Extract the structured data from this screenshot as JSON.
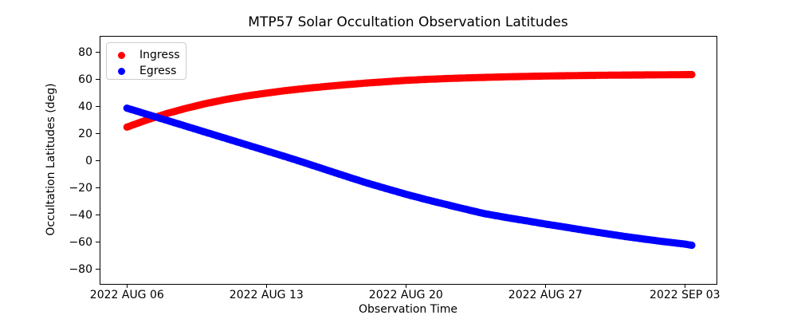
{
  "chart_data": {
    "type": "scatter",
    "title": "MTP57 Solar Occultation Observation Latitudes",
    "xlabel": "Observation Time",
    "ylabel": "Occultation Latitudes (deg)",
    "grid": false,
    "legend_position": "upper left",
    "marker": "circle",
    "marker_radius_px": 4.6,
    "point_step_days": 0.09,
    "x_units": "days relative to 2022 AUG 06",
    "xlim_days": [
      -1.37,
      29.59
    ],
    "ylim": [
      -91.2,
      91.8
    ],
    "xticks": [
      {
        "label": "2022 AUG 06",
        "day": 0
      },
      {
        "label": "2022 AUG 13",
        "day": 7
      },
      {
        "label": "2022 AUG 20",
        "day": 14
      },
      {
        "label": "2022 AUG 27",
        "day": 21
      },
      {
        "label": "2022 SEP 03",
        "day": 28
      }
    ],
    "yticks": [
      {
        "value": 80,
        "label": "80"
      },
      {
        "value": 60,
        "label": "60"
      },
      {
        "value": 40,
        "label": "40"
      },
      {
        "value": 20,
        "label": "20"
      },
      {
        "value": 0,
        "label": "0"
      },
      {
        "value": -20,
        "label": "−20"
      },
      {
        "value": -40,
        "label": "−40"
      },
      {
        "value": -60,
        "label": "−60"
      },
      {
        "value": -80,
        "label": "−80"
      }
    ],
    "series": [
      {
        "name": "Ingress",
        "color": "#ff0000",
        "x": [
          0,
          1,
          2,
          3,
          4,
          5,
          6,
          7,
          8,
          9,
          10,
          11,
          12,
          13,
          14,
          15,
          16,
          17,
          18,
          19,
          20,
          21,
          22,
          23,
          24,
          25,
          26,
          27,
          28,
          28.4
        ],
        "y": [
          24.5,
          29.8,
          34.5,
          38.5,
          42.0,
          45.0,
          47.5,
          49.6,
          51.5,
          53.1,
          54.5,
          55.8,
          57.0,
          58.0,
          59.0,
          59.7,
          60.3,
          60.8,
          61.2,
          61.6,
          61.9,
          62.2,
          62.4,
          62.6,
          62.8,
          62.9,
          63.0,
          63.1,
          63.2,
          63.3
        ]
      },
      {
        "name": "Egress",
        "color": "#0000ff",
        "x": [
          0,
          1,
          2,
          3,
          4,
          5,
          6,
          7,
          8,
          9,
          10,
          11,
          12,
          13,
          14,
          15,
          16,
          17,
          18,
          19,
          20,
          21,
          22,
          23,
          24,
          25,
          26,
          27,
          28,
          28.4
        ],
        "y": [
          38.5,
          34.0,
          29.5,
          25.0,
          20.5,
          16.0,
          11.5,
          7.0,
          2.5,
          -2.2,
          -7.0,
          -11.8,
          -16.5,
          -20.8,
          -25.0,
          -28.9,
          -32.5,
          -36.1,
          -39.5,
          -42.1,
          -44.5,
          -47.0,
          -49.3,
          -51.7,
          -54.0,
          -56.2,
          -58.2,
          -60.1,
          -61.8,
          -62.8
        ]
      }
    ],
    "annotations": []
  }
}
